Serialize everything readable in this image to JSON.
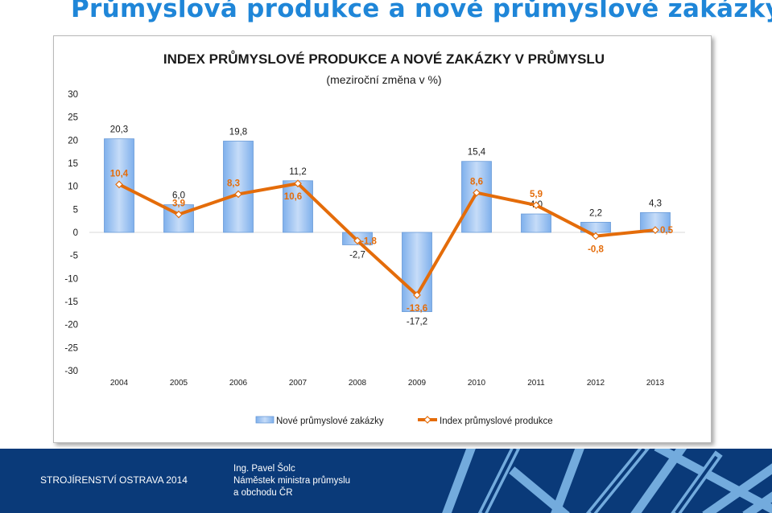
{
  "slide": {
    "title": "Průmyslová produkce a nové průmyslové zakázky"
  },
  "chart_data": {
    "type": "bar",
    "title": "INDEX PRŮMYSLOVÉ PRODUKCE A NOVÉ ZAKÁZKY V PRŮMYSLU",
    "subtitle": "(meziroční změna v %)",
    "categories": [
      "2004",
      "2005",
      "2006",
      "2007",
      "2008",
      "2009",
      "2010",
      "2011",
      "2012",
      "2013"
    ],
    "series": [
      {
        "name": "Nové průmyslové zakázky",
        "type": "bar",
        "values": [
          20.3,
          6.0,
          19.8,
          11.2,
          -2.7,
          -17.2,
          15.4,
          4.0,
          2.2,
          4.3
        ],
        "labels": [
          "20,3",
          "6,0",
          "19,8",
          "11,2",
          "-2,7",
          "-17,2",
          "15,4",
          "4,0",
          "2,2",
          "4,3"
        ],
        "color": "#9dc3f3"
      },
      {
        "name": "Index průmyslové produkce",
        "type": "line",
        "values": [
          10.4,
          3.9,
          8.3,
          10.6,
          -1.8,
          -13.6,
          8.6,
          5.9,
          -0.8,
          0.5
        ],
        "labels": [
          "10,4",
          "3,9",
          "8,3",
          "10,6",
          "-1,8",
          "-13,6",
          "8,6",
          "5,9",
          "-0,8",
          "0,5"
        ],
        "color": "#e46c0a"
      }
    ],
    "ylim": [
      -30,
      30
    ],
    "yticks": [
      -30,
      -25,
      -20,
      -15,
      -10,
      -5,
      0,
      5,
      10,
      15,
      20,
      25,
      30
    ],
    "legend": "bottom",
    "grid": false
  },
  "footer": {
    "left": "STROJÍRENSTVÍ OSTRAVA 2014",
    "author": "Ing. Pavel Šolc",
    "role": "Náměstek ministra průmyslu",
    "org": "a obchodu ČR"
  }
}
